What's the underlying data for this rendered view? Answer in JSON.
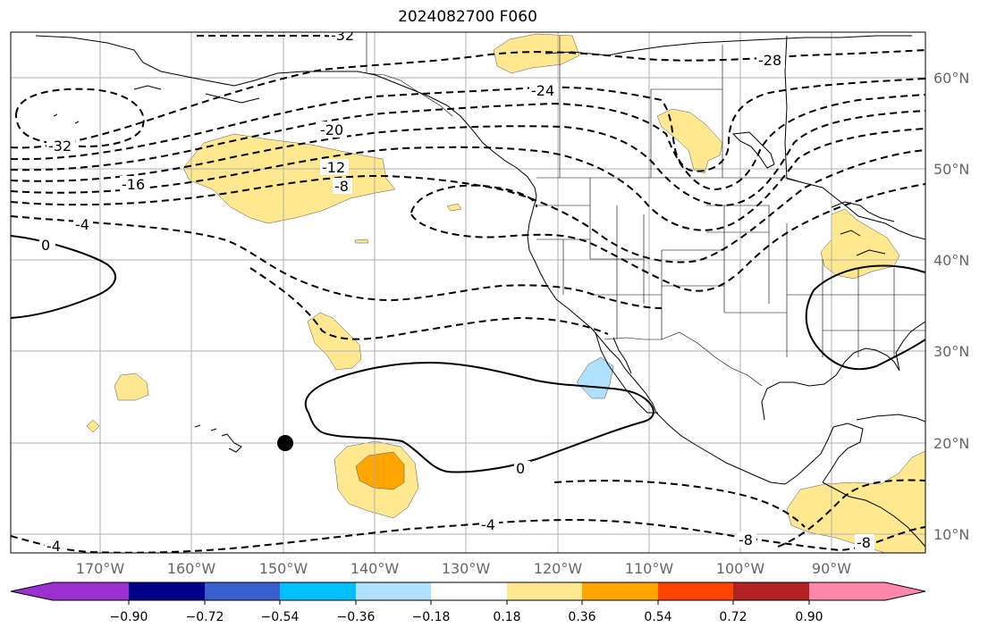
{
  "title": "2024082700 F060",
  "map": {
    "lon_ticks": [
      "170°W",
      "160°W",
      "150°W",
      "140°W",
      "130°W",
      "120°W",
      "110°W",
      "100°W",
      "90°W"
    ],
    "lat_ticks": [
      "60°N",
      "50°N",
      "40°N",
      "30°N",
      "20°N",
      "10°N"
    ],
    "contour_labels": [
      "-32",
      "-28",
      "-24",
      "-20",
      "-16",
      "-12",
      "-8",
      "-4",
      "0",
      "0",
      "-32",
      "-4",
      "-4",
      "-8",
      "-8"
    ],
    "marker": "black dot near 150°W 20°N"
  },
  "colorbar": {
    "tick_labels": [
      "−0.90",
      "−0.72",
      "−0.54",
      "−0.36",
      "−0.18",
      "0.18",
      "0.36",
      "0.54",
      "0.72",
      "0.90"
    ],
    "colors": [
      "#9b30d0",
      "#00008b",
      "#3a5fcd",
      "#00bfff",
      "#b0e0ff",
      "#ffffff",
      "#ffe88f",
      "#ffa500",
      "#ff4500",
      "#b22222",
      "#ff88aa"
    ]
  }
}
